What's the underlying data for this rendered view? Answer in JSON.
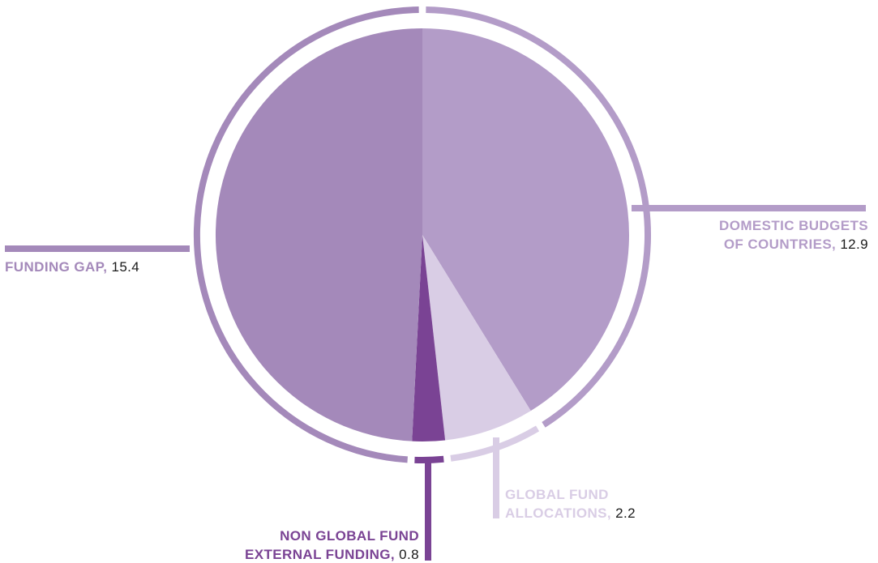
{
  "chart_data": {
    "type": "pie",
    "title": "",
    "slices": [
      {
        "label_lines": [
          "DOMESTIC BUDGETS",
          "OF COUNTRIES,"
        ],
        "value": 12.9,
        "value_text": "12.9",
        "color": "#b39cc8",
        "label_color": "#b39cc8"
      },
      {
        "label_lines": [
          "GLOBAL FUND",
          "ALLOCATIONS,"
        ],
        "value": 2.2,
        "value_text": "2.2",
        "color": "#d9cde5",
        "label_color": "#d9cde5"
      },
      {
        "label_lines": [
          "NON GLOBAL FUND",
          "EXTERNAL FUNDING,"
        ],
        "value": 0.8,
        "value_text": "0.8",
        "color": "#7a4394",
        "label_color": "#7a4394"
      },
      {
        "label_lines": [
          "FUNDING GAP,"
        ],
        "value": 15.4,
        "value_text": "15.4",
        "color": "#a489ba",
        "label_color": "#a489ba"
      }
    ]
  }
}
